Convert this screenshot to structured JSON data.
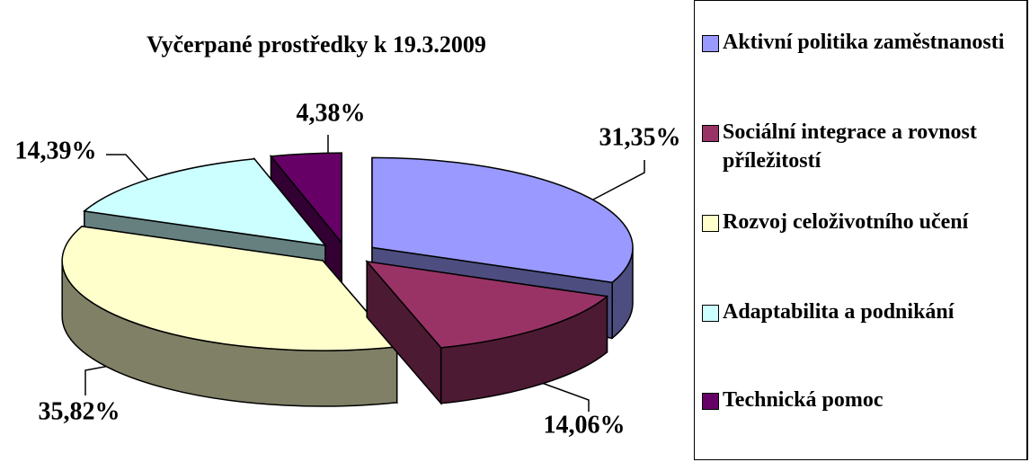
{
  "chart_data": {
    "type": "pie3d",
    "title": "Vyčerpané prostředky k 19.3.2009",
    "categories": [
      "Aktivní politika zaměstnanosti",
      "Sociální integrace a rovnost příležitostí",
      "Rozvoj celoživotního učení",
      "Adaptabilita a podnikání",
      "Technická pomoc"
    ],
    "values": [
      31.35,
      14.06,
      35.82,
      14.39,
      4.38
    ],
    "value_labels": [
      "31,35%",
      "14,06%",
      "35,82%",
      "14,39%",
      "4,38%"
    ],
    "colors": [
      "#9999ff",
      "#993366",
      "#ffffcc",
      "#ccffff",
      "#660066"
    ],
    "legend": "right"
  }
}
